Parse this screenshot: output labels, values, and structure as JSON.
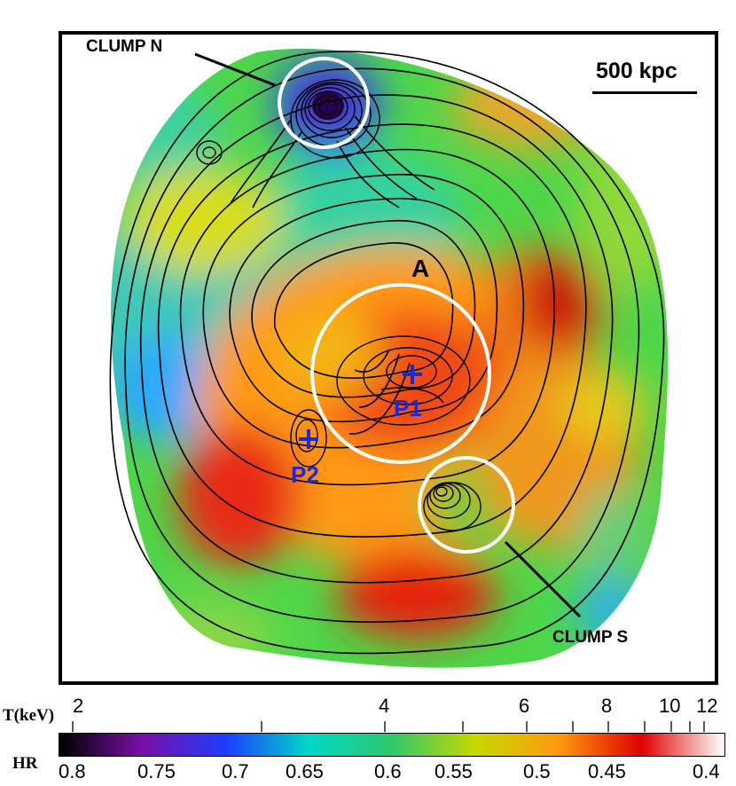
{
  "figure": {
    "scale_bar_label": "500 kpc",
    "annotations": {
      "clump_n": "CLUMP N",
      "clump_s": "CLUMP S",
      "region_a": "A",
      "peak_1": "P1",
      "peak_2": "P2"
    },
    "colors": {
      "circle": "#ffffff",
      "marker": "#1a2bd6",
      "contour": "#000000"
    }
  },
  "colorbar": {
    "t_axis_label": "T(keV)",
    "hr_axis_label": "HR",
    "t_tick_labels": [
      "2",
      "4",
      "6",
      "8",
      "10",
      "12"
    ],
    "hr_tick_labels": [
      "0.8",
      "0.75",
      "0.7",
      "0.65",
      "0.6",
      "0.55",
      "0.5",
      "0.45",
      "0.4"
    ],
    "colormap": [
      "#000000",
      "#7a0fa8",
      "#1c3dff",
      "#00d8c8",
      "#2fc86b",
      "#c6d800",
      "#ff9b10",
      "#e00000",
      "#ffffff"
    ]
  }
}
